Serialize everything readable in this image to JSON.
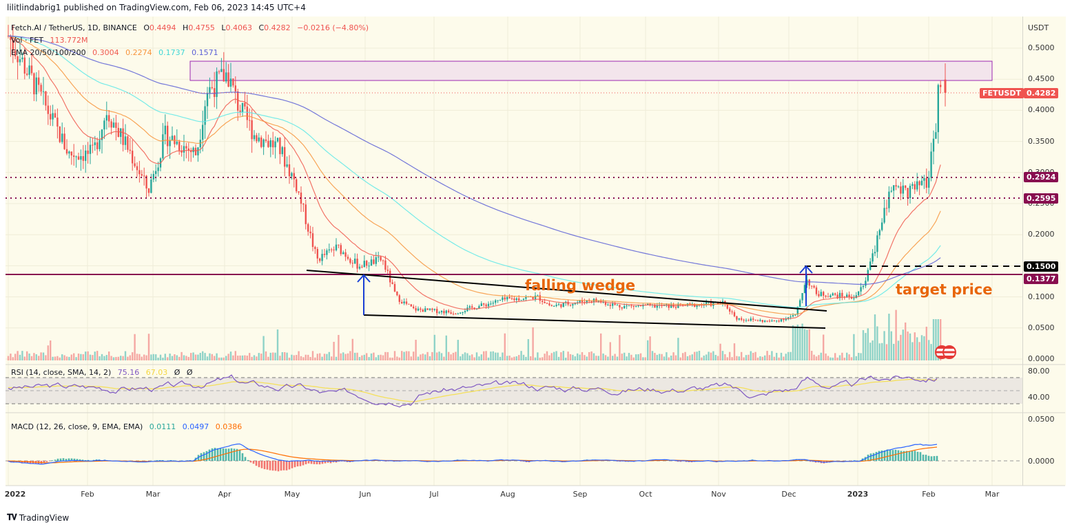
{
  "header": {
    "published": "lilitlindabrig1 published on TradingView.com, Feb 06, 2023 14:45 UTC+4"
  },
  "legend": {
    "symbol": "Fetch.AI / TetherUS, 1D, BINANCE",
    "open_label": "O",
    "open": "0.4494",
    "high_label": "H",
    "high": "0.4755",
    "low_label": "L",
    "low": "0.4063",
    "close_label": "C",
    "close": "0.4282",
    "change": "−0.0216 (−4.80%)",
    "volume_label": "Vol · FET",
    "volume": "113.772M",
    "ema_label": "EMA 20/50/100/200",
    "ema20": "0.3004",
    "ema50": "0.2274",
    "ema100": "0.1737",
    "ema200": "0.1571"
  },
  "rsi_legend": {
    "label": "RSI (14, close, SMA, 14, 2)",
    "rsi": "75.16",
    "sma": "67.03",
    "extra1": "Ø",
    "extra2": "Ø"
  },
  "macd_legend": {
    "label": "MACD (12, 26, close, 9, EMA, EMA)",
    "hist": "0.0111",
    "macd": "0.0497",
    "signal": "0.0386"
  },
  "price_axis": {
    "unit": "USDT",
    "ticks": [
      "0.5000",
      "0.4500",
      "0.4000",
      "0.3500",
      "0.3000",
      "0.2500",
      "0.2000",
      "0.1500",
      "0.1000",
      "0.0500",
      "0.0000"
    ]
  },
  "rsi_axis": {
    "ticks": [
      "80.00",
      "40.00"
    ]
  },
  "macd_axis": {
    "ticks": [
      "0.0500",
      "0.0000"
    ]
  },
  "price_tags": {
    "symbol_tag": "FETUSDT",
    "last": "0.4282",
    "level1": "0.2924",
    "level2": "0.2595",
    "level3": "0.1500",
    "level4": "0.1377"
  },
  "x_axis": [
    "2022",
    "Feb",
    "Mar",
    "Apr",
    "May",
    "Jun",
    "Jul",
    "Aug",
    "Sep",
    "Oct",
    "Nov",
    "Dec",
    "2023",
    "Feb",
    "Mar"
  ],
  "annotations": {
    "wedge": "falling wedge",
    "target": "target price"
  },
  "footer": {
    "brand": "TradingView"
  },
  "colors": {
    "up": "#26a69a",
    "down": "#ef5350",
    "ema20": "#f05a4f",
    "ema50": "#f7953d",
    "ema100": "#5de8e8",
    "ema200": "#5b5fd6",
    "level": "#880e4f",
    "zone": "#9c27b0",
    "annot": "#e8650a",
    "rsi": "#7e57c2",
    "rsi_sma": "#f5e05a",
    "macd": "#2962ff",
    "signal": "#ff6d00"
  },
  "chart_data": {
    "type": "candlestick",
    "title": "Fetch.AI / TetherUS, 1D, BINANCE",
    "ylabel": "USDT",
    "ylim": [
      0,
      0.52
    ],
    "x_labels": [
      "2022",
      "Feb",
      "Mar",
      "Apr",
      "May",
      "Jun",
      "Jul",
      "Aug",
      "Sep",
      "Oct",
      "Nov",
      "Dec",
      "2023",
      "Feb",
      "Mar"
    ],
    "approx_monthly_close": {
      "x": [
        "Jan 2022",
        "Feb",
        "Mar",
        "Apr",
        "May",
        "Jun",
        "Jul",
        "Aug",
        "Sep",
        "Oct",
        "Nov",
        "Dec",
        "Jan 2023",
        "Feb 6"
      ],
      "close": [
        0.33,
        0.3,
        0.38,
        0.4,
        0.16,
        0.1,
        0.08,
        0.095,
        0.085,
        0.085,
        0.07,
        0.1,
        0.28,
        0.4282
      ]
    },
    "last_candle": {
      "open": 0.4494,
      "high": 0.4755,
      "low": 0.4063,
      "close": 0.4282
    },
    "horizontal_levels": [
      0.2924,
      0.2595,
      0.15,
      0.1377
    ],
    "resistance_zone": [
      0.447,
      0.478
    ],
    "ema": {
      "20": 0.3004,
      "50": 0.2274,
      "100": 0.1737,
      "200": 0.1571
    },
    "rsi": {
      "value": 75.16,
      "sma": 67.03,
      "bands": [
        70,
        50,
        30
      ]
    },
    "macd": {
      "hist": 0.0111,
      "macd": 0.0497,
      "signal": 0.0386
    },
    "annotations": [
      "falling wedge",
      "target price"
    ]
  }
}
